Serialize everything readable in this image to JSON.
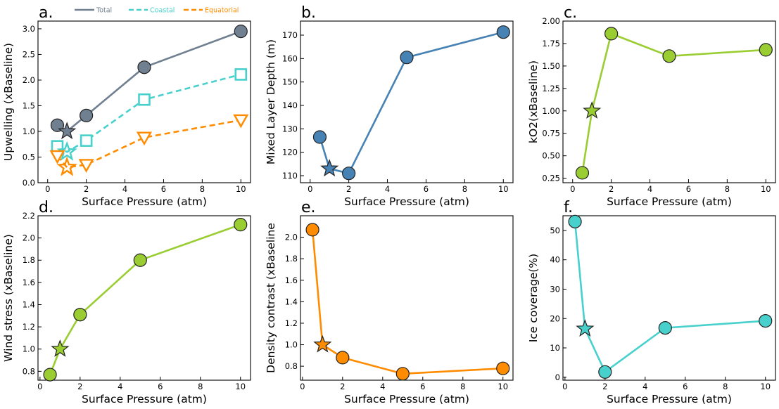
{
  "colors": {
    "total": "#708090",
    "coastal": "#48D1CC",
    "equatorial": "#FF8C00",
    "steelblue": "#4682B4",
    "yellowgreen": "#9ACD32",
    "darkorange": "#FF8C00",
    "turquoise": "#48D1CC"
  },
  "chart_data": [
    {
      "id": "a",
      "type": "line",
      "panel_label": "a.",
      "xlabel": "Surface Pressure (atm)",
      "ylabel": "Upwelling (xBaseline)",
      "xlim": [
        -0.5,
        10.5
      ],
      "ylim": [
        0.0,
        3.15
      ],
      "xticks": [
        0,
        2,
        4,
        6,
        8,
        10
      ],
      "xtick_labels": [
        "0",
        "2",
        "4",
        "6",
        "8",
        "10"
      ],
      "yticks": [
        0.0,
        0.5,
        1.0,
        1.5,
        2.0,
        2.5,
        3.0
      ],
      "ytick_labels": [
        "0.0",
        "0.5",
        "1.0",
        "1.5",
        "2.0",
        "2.5",
        "3.0"
      ],
      "legend": "top",
      "series": [
        {
          "name": "Total",
          "color": "#708090",
          "dash": false,
          "marker": "circle",
          "filled": true,
          "x": [
            0.5,
            1,
            2,
            5,
            10
          ],
          "y": [
            1.12,
            1.0,
            1.31,
            2.25,
            2.95
          ],
          "star_index": 1
        },
        {
          "name": "Coastal",
          "color": "#48D1CC",
          "dash": true,
          "marker": "square",
          "filled": false,
          "x": [
            0.5,
            1,
            2,
            5,
            10
          ],
          "y": [
            0.71,
            0.6,
            0.82,
            1.62,
            2.11
          ],
          "star_index": 1
        },
        {
          "name": "Equatorial",
          "color": "#FF8C00",
          "dash": true,
          "marker": "triangle-down",
          "filled": false,
          "x": [
            0.5,
            1,
            2,
            5,
            10
          ],
          "y": [
            0.52,
            0.3,
            0.35,
            0.88,
            1.22
          ],
          "star_index": 1
        }
      ]
    },
    {
      "id": "b",
      "type": "line",
      "panel_label": "b.",
      "xlabel": "Surface Pressure (atm)",
      "ylabel": "Mixed Layer Depth (m)",
      "xlim": [
        -0.5,
        10.5
      ],
      "ylim": [
        107,
        176
      ],
      "xticks": [
        0,
        2,
        4,
        6,
        8,
        10
      ],
      "xtick_labels": [
        "0",
        "2",
        "4",
        "6",
        "8",
        "10"
      ],
      "yticks": [
        110,
        120,
        130,
        140,
        150,
        160,
        170
      ],
      "ytick_labels": [
        "110",
        "120",
        "130",
        "140",
        "150",
        "160",
        "170"
      ],
      "series": [
        {
          "color": "#4682B4",
          "dash": false,
          "marker": "circle",
          "filled": true,
          "x": [
            0.5,
            1,
            2,
            5,
            10
          ],
          "y": [
            126.5,
            113.0,
            111.0,
            160.5,
            171.3
          ],
          "star_index": 1
        }
      ]
    },
    {
      "id": "c",
      "type": "line",
      "panel_label": "c.",
      "xlabel": "Surface Pressure (atm)",
      "ylabel": "kO2(xBaseline)",
      "xlim": [
        -0.5,
        10.5
      ],
      "ylim": [
        0.2,
        2.0
      ],
      "xticks": [
        0,
        2,
        4,
        6,
        8,
        10
      ],
      "xtick_labels": [
        "0",
        "2",
        "4",
        "6",
        "8",
        "10"
      ],
      "yticks": [
        0.25,
        0.5,
        0.75,
        1.0,
        1.25,
        1.5,
        1.75,
        2.0
      ],
      "ytick_labels": [
        "0.25",
        "0.50",
        "0.75",
        "1.00",
        "1.25",
        "1.50",
        "1.75",
        "2.00"
      ],
      "series": [
        {
          "color": "#9ACD32",
          "dash": false,
          "marker": "circle",
          "filled": true,
          "x": [
            0.5,
            1,
            2,
            5,
            10
          ],
          "y": [
            0.31,
            1.0,
            1.86,
            1.61,
            1.68
          ],
          "star_index": 1
        }
      ]
    },
    {
      "id": "d",
      "type": "line",
      "panel_label": "d.",
      "xlabel": "Surface Pressure (atm)",
      "ylabel": "Wind stress (xBaseline)",
      "xlim": [
        -0.1,
        10.5
      ],
      "ylim": [
        0.72,
        2.2
      ],
      "xticks": [
        0,
        2,
        4,
        6,
        8,
        10
      ],
      "xtick_labels": [
        "0",
        "2",
        "4",
        "6",
        "8",
        "10"
      ],
      "yticks": [
        0.8,
        1.0,
        1.2,
        1.4,
        1.6,
        1.8,
        2.0,
        2.2
      ],
      "ytick_labels": [
        "0.8",
        "1.0",
        "1.2",
        "1.4",
        "1.6",
        "1.8",
        "2.0",
        "2.2"
      ],
      "series": [
        {
          "color": "#9ACD32",
          "dash": false,
          "marker": "circle",
          "filled": true,
          "x": [
            0.5,
            1,
            2,
            5,
            10
          ],
          "y": [
            0.77,
            1.0,
            1.31,
            1.8,
            2.12
          ],
          "star_index": 1
        }
      ]
    },
    {
      "id": "e",
      "type": "line",
      "panel_label": "e.",
      "xlabel": "Surface Pressure (atm)",
      "ylabel": "Density contrast (xBaseline",
      "xlim": [
        -0.1,
        10.5
      ],
      "ylim": [
        0.67,
        2.2
      ],
      "xticks": [
        0,
        2,
        4,
        6,
        8,
        10
      ],
      "xtick_labels": [
        "0",
        "2",
        "4",
        "6",
        "8",
        "10"
      ],
      "yticks": [
        0.8,
        1.0,
        1.2,
        1.4,
        1.6,
        1.8,
        2.0
      ],
      "ytick_labels": [
        "0.8",
        "1.0",
        "1.2",
        "1.4",
        "1.6",
        "1.8",
        "2.0"
      ],
      "series": [
        {
          "color": "#FF8C00",
          "dash": false,
          "marker": "circle",
          "filled": true,
          "x": [
            0.5,
            1,
            2,
            5,
            10
          ],
          "y": [
            2.07,
            1.0,
            0.88,
            0.73,
            0.78
          ],
          "star_index": 1
        }
      ]
    },
    {
      "id": "f",
      "type": "line",
      "panel_label": "f.",
      "xlabel": "Surface Pressure (atm)",
      "ylabel": "Ice coverage(%)",
      "xlim": [
        -0.1,
        10.5
      ],
      "ylim": [
        -1,
        55
      ],
      "xticks": [
        0,
        2,
        4,
        6,
        8,
        10
      ],
      "xtick_labels": [
        "0",
        "2",
        "4",
        "6",
        "8",
        "10"
      ],
      "yticks": [
        0,
        10,
        20,
        30,
        40,
        50
      ],
      "ytick_labels": [
        "0",
        "10",
        "20",
        "30",
        "40",
        "50"
      ],
      "series": [
        {
          "color": "#48D1CC",
          "dash": false,
          "marker": "circle",
          "filled": true,
          "x": [
            0.5,
            1,
            2,
            5,
            10
          ],
          "y": [
            53.0,
            16.5,
            1.8,
            16.8,
            19.2
          ],
          "star_index": 1
        }
      ]
    }
  ]
}
